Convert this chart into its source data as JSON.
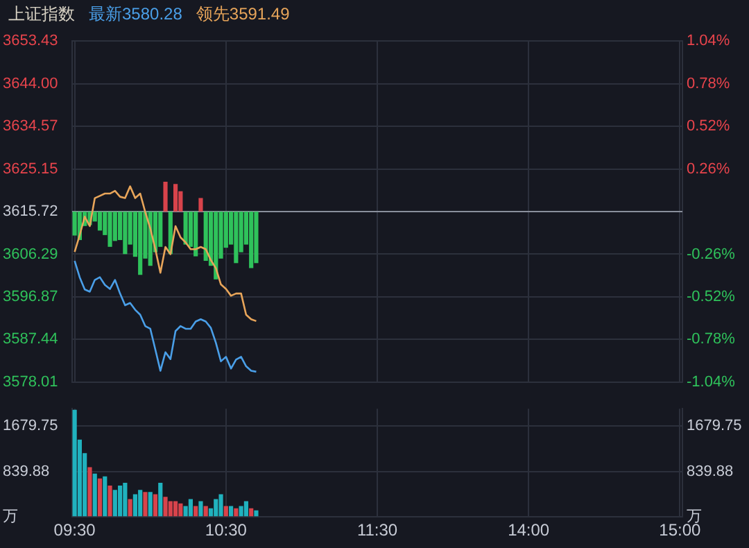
{
  "chart_data": [
    {
      "type": "line",
      "title": "上证指数",
      "annotations": [
        "最新3580.28",
        "领先3591.49"
      ],
      "grid": true,
      "tick_labels": "y",
      "categories": [
        null,
        null,
        null,
        null,
        null,
        null,
        null,
        null,
        null,
        null,
        null,
        null,
        null,
        null,
        null,
        null,
        null,
        null,
        null,
        null,
        null,
        null,
        null,
        null,
        null,
        null,
        null,
        null,
        null,
        null,
        null,
        null,
        null,
        null,
        null,
        null,
        null,
        null,
        null,
        null,
        null,
        null,
        null,
        null,
        null,
        null,
        null,
        null,
        null,
        null,
        null,
        null,
        null,
        null,
        null,
        null,
        null,
        null,
        null,
        null,
        null,
        null,
        null,
        null,
        null,
        null,
        null,
        null,
        null,
        null,
        null,
        null,
        null,
        null,
        null,
        null,
        null,
        null,
        null,
        null,
        null,
        null,
        null,
        null,
        null,
        null,
        null,
        null,
        null,
        null,
        null,
        null,
        null,
        null,
        null,
        null,
        null,
        null,
        null,
        null,
        null,
        null,
        null,
        null,
        null,
        null,
        null,
        null,
        null,
        null,
        null,
        null,
        null,
        null,
        null,
        null,
        null,
        null,
        null,
        null,
        null
      ],
      "ylim": [
        3578.01,
        3653.43
      ],
      "yticks": [
        3578.01,
        3587.44,
        3596.87,
        3606.29,
        3615.72,
        3625.15,
        3634.57,
        {
          "value": 3644,
          "label": "3644.00"
        },
        3653.43
      ],
      "y2lim": [
        -1.04,
        1.04
      ],
      "y2ticks": [
        {
          "value": -1.04,
          "label": "-1.04%"
        },
        {
          "value": -0.78,
          "label": "-0.78%"
        },
        {
          "value": -0.52,
          "label": "-0.52%"
        },
        {
          "value": -0.26,
          "label": "-0.26%"
        },
        {
          "value": 0,
          "label": null
        },
        {
          "value": 0.26,
          "label": "0.26%"
        },
        {
          "value": 0.52,
          "label": "0.52%"
        },
        {
          "value": 0.78,
          "label": "0.78%"
        },
        {
          "value": 1.04,
          "label": "1.04%"
        }
      ],
      "ref_lines": [
        {
          "axis": "y",
          "value": 3615.72,
          "color": "#8a8f9c"
        }
      ],
      "series": [
        {
          "type": "bar",
          "base": [
            3615.72,
            3615.72,
            3615.72,
            3615.72,
            3615.72,
            3615.72,
            3615.72,
            3615.72,
            3615.72,
            3615.72,
            3615.72,
            3615.72,
            3615.72,
            3615.72,
            3615.72,
            3615.72,
            3615.72,
            3615.72,
            3615.72,
            3615.72,
            3615.72,
            3615.72,
            3615.72,
            3615.72,
            3615.72,
            3615.72,
            3615.72,
            3615.72,
            3615.72,
            3615.72,
            3615.72,
            3615.72,
            3615.72,
            3615.72,
            3615.72,
            3615.72,
            3615.72,
            null,
            null,
            null,
            null,
            null,
            null,
            null,
            null,
            null,
            null,
            null,
            null,
            null,
            null,
            null,
            null,
            null,
            null,
            null,
            null,
            null,
            null,
            null,
            null,
            null,
            null,
            null,
            null,
            null,
            null,
            null,
            null,
            null,
            null,
            null,
            null,
            null,
            null,
            null,
            null,
            null,
            null,
            null,
            null,
            null,
            null,
            null,
            null,
            null,
            null,
            null,
            null,
            null,
            null,
            null,
            null,
            null,
            null,
            null,
            null,
            null,
            null,
            null,
            null,
            null,
            null,
            null,
            null,
            null,
            null,
            null,
            null,
            null,
            null,
            null,
            null,
            null,
            null,
            null,
            null,
            null,
            null,
            null,
            null
          ],
          "values": [
            -5.3,
            -6.3,
            -3.2,
            -3.0,
            -2.2,
            -4.2,
            -5.2,
            -7.8,
            -6.5,
            -6.3,
            -9.4,
            -7.3,
            -10.0,
            -14.0,
            -10.4,
            -12.0,
            -9.0,
            -7.8,
            6.6,
            -9.4,
            6.1,
            4.5,
            -7.3,
            -7.8,
            -9.9,
            3.0,
            -10.9,
            -12.0,
            -15.0,
            -10.4,
            -8.0,
            -7.3,
            -11.4,
            -9.0,
            -7.3,
            -12.5,
            -11.4,
            null,
            null,
            null,
            null,
            null,
            null,
            null,
            null,
            null,
            null,
            null,
            null,
            null,
            null,
            null,
            null,
            null,
            null,
            null,
            null,
            null,
            null,
            null,
            null,
            null,
            null,
            null,
            null,
            null,
            null,
            null,
            null,
            null,
            null,
            null,
            null,
            null,
            null,
            null,
            null,
            null,
            null,
            null,
            null,
            null,
            null,
            null,
            null,
            null,
            null,
            null,
            null,
            null,
            null,
            null,
            null,
            null,
            null,
            null,
            null,
            null,
            null,
            null,
            null,
            null,
            null,
            null,
            null,
            null,
            null,
            null,
            null,
            null,
            null,
            null,
            null,
            null,
            null,
            null,
            null,
            null,
            null,
            null,
            null
          ],
          "colors": [
            "#2fc25b",
            "#2fc25b",
            "#2fc25b",
            "#2fc25b",
            "#2fc25b",
            "#2fc25b",
            "#2fc25b",
            "#2fc25b",
            "#2fc25b",
            "#2fc25b",
            "#2fc25b",
            "#2fc25b",
            "#2fc25b",
            "#2fc25b",
            "#2fc25b",
            "#2fc25b",
            "#2fc25b",
            "#2fc25b",
            "#d8434b",
            "#2fc25b",
            "#d8434b",
            "#d8434b",
            "#2fc25b",
            "#2fc25b",
            "#2fc25b",
            "#d8434b",
            "#2fc25b",
            "#2fc25b",
            "#2fc25b",
            "#2fc25b",
            "#2fc25b",
            "#2fc25b",
            "#2fc25b",
            "#2fc25b",
            "#2fc25b",
            "#2fc25b",
            "#2fc25b",
            null,
            null,
            null,
            null,
            null,
            null,
            null,
            null,
            null,
            null,
            null,
            null,
            null,
            null,
            null,
            null,
            null,
            null,
            null,
            null,
            null,
            null,
            null,
            null,
            null,
            null,
            null,
            null,
            null,
            null,
            null,
            null,
            null,
            null,
            null,
            null,
            null,
            null,
            null,
            null,
            null,
            null,
            null,
            null,
            null,
            null,
            null,
            null,
            null,
            null,
            null,
            null,
            null,
            null,
            null,
            null,
            null,
            null,
            null,
            null,
            null,
            null,
            null,
            null,
            null,
            null,
            null,
            null,
            null,
            null,
            null,
            null,
            null,
            null,
            null,
            null,
            null,
            null,
            null,
            null,
            null,
            null,
            null,
            null
          ]
        },
        {
          "color": "#4a9fe8",
          "values": [
            3604.8,
            3601.2,
            3598.5,
            3598.0,
            3600.6,
            3601.2,
            3599.5,
            3598.6,
            3600.6,
            3597.6,
            3595.0,
            3595.5,
            3594.0,
            3592.9,
            3590.4,
            3589.8,
            3585.2,
            3580.5,
            3584.6,
            3583.1,
            3589.3,
            3590.4,
            3589.8,
            3589.8,
            3591.4,
            3591.9,
            3591.4,
            3590.0,
            3586.7,
            3582.6,
            3583.6,
            3581.0,
            3583.0,
            3583.6,
            3581.5,
            3580.5,
            3580.3,
            null,
            null,
            null,
            null,
            null,
            null,
            null,
            null,
            null,
            null,
            null,
            null,
            null,
            null,
            null,
            null,
            null,
            null,
            null,
            null,
            null,
            null,
            null,
            null,
            null,
            null,
            null,
            null,
            null,
            null,
            null,
            null,
            null,
            null,
            null,
            null,
            null,
            null,
            null,
            null,
            null,
            null,
            null,
            null,
            null,
            null,
            null,
            null,
            null,
            null,
            null,
            null,
            null,
            null,
            null,
            null,
            null,
            null,
            null,
            null,
            null,
            null,
            null,
            null,
            null,
            null,
            null,
            null,
            null,
            null,
            null,
            null,
            null,
            null,
            null,
            null,
            null,
            null,
            null,
            null,
            null,
            null,
            null,
            null
          ]
        },
        {
          "color": "#e8a55a",
          "values": [
            3606.8,
            3610.5,
            3614.6,
            3612.5,
            3618.7,
            3619.2,
            3619.7,
            3619.7,
            3620.3,
            3619.0,
            3618.7,
            3621.3,
            3618.7,
            3619.7,
            3615.6,
            3612.0,
            3607.4,
            3602.2,
            3607.9,
            3606.3,
            3612.5,
            3610.0,
            3608.9,
            3607.4,
            3607.4,
            3607.9,
            3607.4,
            3605.0,
            3603.2,
            3599.6,
            3598.6,
            3597.1,
            3597.6,
            3597.6,
            3592.9,
            3591.9,
            3591.5,
            null,
            null,
            null,
            null,
            null,
            null,
            null,
            null,
            null,
            null,
            null,
            null,
            null,
            null,
            null,
            null,
            null,
            null,
            null,
            null,
            null,
            null,
            null,
            null,
            null,
            null,
            null,
            null,
            null,
            null,
            null,
            null,
            null,
            null,
            null,
            null,
            null,
            null,
            null,
            null,
            null,
            null,
            null,
            null,
            null,
            null,
            null,
            null,
            null,
            null,
            null,
            null,
            null,
            null,
            null,
            null,
            null,
            null,
            null,
            null,
            null,
            null,
            null,
            null,
            null,
            null,
            null,
            null,
            null,
            null,
            null,
            null,
            null,
            null,
            null,
            null,
            null,
            null,
            null,
            null,
            null,
            null,
            null,
            null
          ]
        }
      ]
    },
    {
      "type": "bar",
      "grid": true,
      "categories": [
        "09:30",
        null,
        null,
        null,
        null,
        null,
        null,
        null,
        null,
        null,
        null,
        null,
        null,
        null,
        null,
        null,
        null,
        null,
        null,
        null,
        null,
        null,
        null,
        null,
        null,
        null,
        null,
        null,
        null,
        null,
        "10:30",
        null,
        null,
        null,
        null,
        null,
        null,
        null,
        null,
        null,
        null,
        null,
        null,
        null,
        null,
        null,
        null,
        null,
        null,
        null,
        null,
        null,
        null,
        null,
        null,
        null,
        null,
        null,
        null,
        null,
        "11:30",
        null,
        null,
        null,
        null,
        null,
        null,
        null,
        null,
        null,
        null,
        null,
        null,
        null,
        null,
        null,
        null,
        null,
        null,
        null,
        null,
        null,
        null,
        null,
        null,
        null,
        null,
        null,
        null,
        null,
        "14:00",
        null,
        null,
        null,
        null,
        null,
        null,
        null,
        null,
        null,
        null,
        null,
        null,
        null,
        null,
        null,
        null,
        null,
        null,
        null,
        null,
        null,
        null,
        null,
        null,
        null,
        null,
        null,
        null,
        null,
        "15:00"
      ],
      "ylim": [
        0,
        2000
      ],
      "yticks": [
        {
          "value": 0,
          "label": "万"
        },
        839.88,
        1679.75
      ],
      "y2lim": [
        0,
        2000
      ],
      "y2ticks": [
        {
          "value": 0,
          "label": "万"
        },
        839.88,
        1679.75
      ],
      "values": [
        1980,
        1430,
        1180,
        920,
        800,
        710,
        750,
        580,
        500,
        580,
        630,
        330,
        420,
        500,
        460,
        460,
        420,
        630,
        370,
        290,
        290,
        250,
        200,
        330,
        200,
        290,
        200,
        160,
        330,
        420,
        200,
        200,
        160,
        200,
        290,
        160,
        120,
        null,
        null,
        null,
        null,
        null,
        null,
        null,
        null,
        null,
        null,
        null,
        null,
        null,
        null,
        null,
        null,
        null,
        null,
        null,
        null,
        null,
        null,
        null,
        null,
        null,
        null,
        null,
        null,
        null,
        null,
        null,
        null,
        null,
        null,
        null,
        null,
        null,
        null,
        null,
        null,
        null,
        null,
        null,
        null,
        null,
        null,
        null,
        null,
        null,
        null,
        null,
        null,
        null,
        null,
        null,
        null,
        null,
        null,
        null,
        null,
        null,
        null,
        null,
        null,
        null,
        null,
        null,
        null,
        null,
        null,
        null,
        null,
        null,
        null,
        null,
        null,
        null,
        null,
        null,
        null,
        null,
        null,
        null,
        null
      ],
      "colors": [
        "#20b2be",
        "#20b2be",
        "#20b2be",
        "#d8434b",
        "#20b2be",
        "#d8434b",
        "#20b2be",
        "#d8434b",
        "#20b2be",
        "#20b2be",
        "#20b2be",
        "#d8434b",
        "#20b2be",
        "#20b2be",
        "#d8434b",
        "#20b2be",
        "#d8434b",
        "#20b2be",
        "#d8434b",
        "#d8434b",
        "#d8434b",
        "#d8434b",
        "#20b2be",
        "#20b2be",
        "#d8434b",
        "#20b2be",
        "#d8434b",
        "#20b2be",
        "#20b2be",
        "#20b2be",
        "#d8434b",
        "#20b2be",
        "#d8434b",
        "#20b2be",
        "#20b2be",
        "#d8434b",
        "#20b2be",
        null,
        null,
        null,
        null,
        null,
        null,
        null,
        null,
        null,
        null,
        null,
        null,
        null,
        null,
        null,
        null,
        null,
        null,
        null,
        null,
        null,
        null,
        null,
        null,
        null,
        null,
        null,
        null,
        null,
        null,
        null,
        null,
        null,
        null,
        null,
        null,
        null,
        null,
        null,
        null,
        null,
        null,
        null,
        null,
        null,
        null,
        null,
        null,
        null,
        null,
        null,
        null,
        null,
        null,
        null,
        null,
        null,
        null,
        null,
        null,
        null,
        null,
        null,
        null,
        null,
        null,
        null,
        null,
        null,
        null,
        null,
        null,
        null,
        null,
        null,
        null,
        null,
        null,
        null,
        null,
        null,
        null,
        null,
        null
      ]
    }
  ]
}
